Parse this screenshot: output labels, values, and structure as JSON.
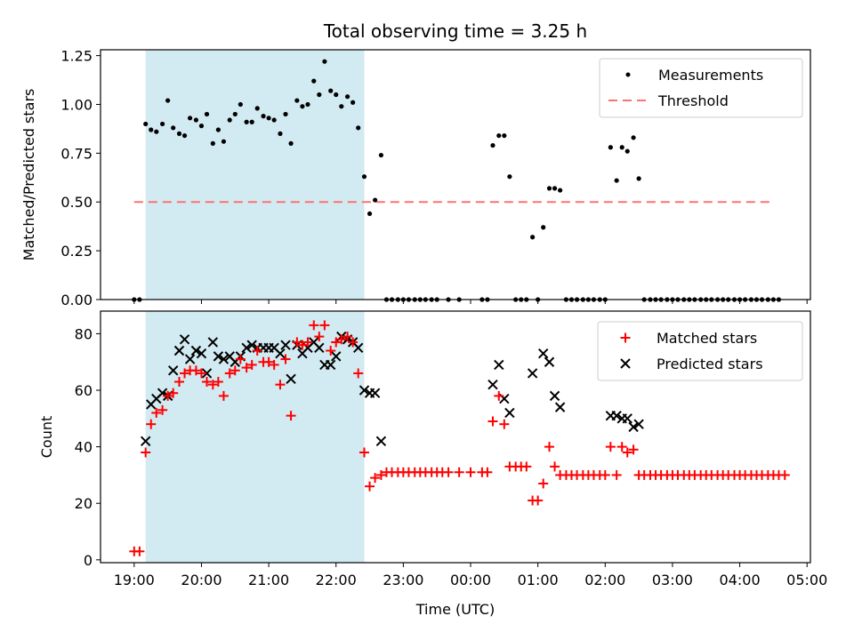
{
  "chart_data": {
    "title": "Total observing time = 3.25 h",
    "xlabel": "Time (UTC)",
    "x_ticks": [
      "19:00",
      "20:00",
      "21:00",
      "22:00",
      "23:00",
      "00:00",
      "01:00",
      "02:00",
      "03:00",
      "04:00",
      "05:00"
    ],
    "x_range_hours": [
      18.5,
      29.05
    ],
    "shaded_interval_hours": [
      19.17,
      22.42
    ],
    "shade_color": "#add8e6",
    "top": {
      "type": "scatter",
      "ylabel": "Matched/Predicted stars",
      "ylim": [
        0,
        1.28
      ],
      "yticks": [
        "0.00",
        "0.25",
        "0.50",
        "0.75",
        "1.00",
        "1.25"
      ],
      "threshold": 0.5,
      "threshold_range_hours": [
        19.0,
        28.5
      ],
      "legend": [
        "Measurements",
        "Threshold"
      ],
      "threshold_color": "#ff7070",
      "measurements": [
        [
          19.0,
          0
        ],
        [
          19.08,
          0
        ],
        [
          19.17,
          0.9
        ],
        [
          19.25,
          0.87
        ],
        [
          19.33,
          0.86
        ],
        [
          19.42,
          0.9
        ],
        [
          19.5,
          1.02
        ],
        [
          19.58,
          0.88
        ],
        [
          19.67,
          0.85
        ],
        [
          19.75,
          0.84
        ],
        [
          19.83,
          0.93
        ],
        [
          19.92,
          0.92
        ],
        [
          20.0,
          0.89
        ],
        [
          20.08,
          0.95
        ],
        [
          20.17,
          0.8
        ],
        [
          20.25,
          0.87
        ],
        [
          20.33,
          0.81
        ],
        [
          20.42,
          0.92
        ],
        [
          20.5,
          0.95
        ],
        [
          20.58,
          1.0
        ],
        [
          20.67,
          0.91
        ],
        [
          20.75,
          0.91
        ],
        [
          20.83,
          0.98
        ],
        [
          20.92,
          0.94
        ],
        [
          21.0,
          0.93
        ],
        [
          21.08,
          0.92
        ],
        [
          21.17,
          0.85
        ],
        [
          21.25,
          0.95
        ],
        [
          21.33,
          0.8
        ],
        [
          21.42,
          1.02
        ],
        [
          21.5,
          0.99
        ],
        [
          21.58,
          1.0
        ],
        [
          21.67,
          1.12
        ],
        [
          21.75,
          1.05
        ],
        [
          21.83,
          1.22
        ],
        [
          21.92,
          1.07
        ],
        [
          22.0,
          1.05
        ],
        [
          22.08,
          0.99
        ],
        [
          22.17,
          1.04
        ],
        [
          22.25,
          1.01
        ],
        [
          22.33,
          0.88
        ],
        [
          22.42,
          0.63
        ],
        [
          22.5,
          0.44
        ],
        [
          22.58,
          0.51
        ],
        [
          22.67,
          0.74
        ],
        [
          22.75,
          0
        ],
        [
          22.83,
          0
        ],
        [
          22.92,
          0
        ],
        [
          23.0,
          0
        ],
        [
          23.08,
          0
        ],
        [
          23.17,
          0
        ],
        [
          23.25,
          0
        ],
        [
          23.33,
          0
        ],
        [
          23.42,
          0
        ],
        [
          23.5,
          0
        ],
        [
          23.67,
          0
        ],
        [
          23.83,
          0
        ],
        [
          24.17,
          0
        ],
        [
          24.25,
          0
        ],
        [
          24.33,
          0.79
        ],
        [
          24.42,
          0.84
        ],
        [
          24.5,
          0.84
        ],
        [
          24.58,
          0.63
        ],
        [
          24.67,
          0
        ],
        [
          24.75,
          0
        ],
        [
          24.83,
          0
        ],
        [
          24.92,
          0.32
        ],
        [
          25.0,
          0
        ],
        [
          25.08,
          0.37
        ],
        [
          25.17,
          0.57
        ],
        [
          25.25,
          0.57
        ],
        [
          25.33,
          0.56
        ],
        [
          25.42,
          0
        ],
        [
          25.5,
          0
        ],
        [
          25.58,
          0
        ],
        [
          25.67,
          0
        ],
        [
          25.75,
          0
        ],
        [
          25.83,
          0
        ],
        [
          25.92,
          0
        ],
        [
          26.0,
          0
        ],
        [
          26.08,
          0.78
        ],
        [
          26.17,
          0.61
        ],
        [
          26.25,
          0.78
        ],
        [
          26.33,
          0.76
        ],
        [
          26.42,
          0.83
        ],
        [
          26.5,
          0.62
        ],
        [
          26.58,
          0
        ],
        [
          26.67,
          0
        ],
        [
          26.75,
          0
        ],
        [
          26.83,
          0
        ],
        [
          26.92,
          0
        ],
        [
          27.0,
          0
        ],
        [
          27.08,
          0
        ],
        [
          27.17,
          0
        ],
        [
          27.25,
          0
        ],
        [
          27.33,
          0
        ],
        [
          27.42,
          0
        ],
        [
          27.5,
          0
        ],
        [
          27.58,
          0
        ],
        [
          27.67,
          0
        ],
        [
          27.75,
          0
        ],
        [
          27.83,
          0
        ],
        [
          27.92,
          0
        ],
        [
          28.0,
          0
        ],
        [
          28.08,
          0
        ],
        [
          28.17,
          0
        ],
        [
          28.25,
          0
        ],
        [
          28.33,
          0
        ],
        [
          28.42,
          0
        ],
        [
          28.5,
          0
        ],
        [
          28.58,
          0
        ]
      ]
    },
    "bottom": {
      "type": "scatter",
      "ylabel": "Count",
      "ylim": [
        -1,
        88
      ],
      "yticks": [
        "0",
        "20",
        "40",
        "60",
        "80"
      ],
      "legend": [
        "Matched stars",
        "Predicted stars"
      ],
      "matched_color": "#ff0000",
      "predicted_color": "#000000",
      "matched": [
        [
          19.0,
          3
        ],
        [
          19.08,
          3
        ],
        [
          19.17,
          38
        ],
        [
          19.25,
          48
        ],
        [
          19.33,
          52
        ],
        [
          19.42,
          53
        ],
        [
          19.5,
          58
        ],
        [
          19.58,
          59
        ],
        [
          19.67,
          63
        ],
        [
          19.75,
          66
        ],
        [
          19.83,
          67
        ],
        [
          19.92,
          67
        ],
        [
          20.0,
          66
        ],
        [
          20.08,
          63
        ],
        [
          20.17,
          62
        ],
        [
          20.25,
          63
        ],
        [
          20.33,
          58
        ],
        [
          20.42,
          66
        ],
        [
          20.5,
          67
        ],
        [
          20.58,
          71
        ],
        [
          20.67,
          68
        ],
        [
          20.75,
          69
        ],
        [
          20.83,
          74
        ],
        [
          20.92,
          70
        ],
        [
          21.0,
          70
        ],
        [
          21.08,
          69
        ],
        [
          21.17,
          62
        ],
        [
          21.25,
          71
        ],
        [
          21.33,
          51
        ],
        [
          21.42,
          77
        ],
        [
          21.5,
          76
        ],
        [
          21.58,
          77
        ],
        [
          21.67,
          83
        ],
        [
          21.75,
          79
        ],
        [
          21.83,
          83
        ],
        [
          21.92,
          74
        ],
        [
          22.0,
          77
        ],
        [
          22.08,
          78
        ],
        [
          22.17,
          79
        ],
        [
          22.25,
          77
        ],
        [
          22.33,
          66
        ],
        [
          22.42,
          38
        ],
        [
          22.5,
          26
        ],
        [
          22.58,
          29
        ],
        [
          22.67,
          30
        ],
        [
          22.75,
          31
        ],
        [
          22.83,
          31
        ],
        [
          22.92,
          31
        ],
        [
          23.0,
          31
        ],
        [
          23.08,
          31
        ],
        [
          23.17,
          31
        ],
        [
          23.25,
          31
        ],
        [
          23.33,
          31
        ],
        [
          23.42,
          31
        ],
        [
          23.5,
          31
        ],
        [
          23.58,
          31
        ],
        [
          23.67,
          31
        ],
        [
          23.83,
          31
        ],
        [
          24.0,
          31
        ],
        [
          24.17,
          31
        ],
        [
          24.25,
          31
        ],
        [
          24.33,
          49
        ],
        [
          24.42,
          58
        ],
        [
          24.5,
          48
        ],
        [
          24.58,
          33
        ],
        [
          24.67,
          33
        ],
        [
          24.75,
          33
        ],
        [
          24.83,
          33
        ],
        [
          24.92,
          21
        ],
        [
          25.0,
          21
        ],
        [
          25.08,
          27
        ],
        [
          25.17,
          40
        ],
        [
          25.25,
          33
        ],
        [
          25.33,
          30
        ],
        [
          25.42,
          30
        ],
        [
          25.5,
          30
        ],
        [
          25.58,
          30
        ],
        [
          25.67,
          30
        ],
        [
          25.75,
          30
        ],
        [
          25.83,
          30
        ],
        [
          25.92,
          30
        ],
        [
          26.0,
          30
        ],
        [
          26.08,
          40
        ],
        [
          26.17,
          30
        ],
        [
          26.25,
          40
        ],
        [
          26.33,
          38
        ],
        [
          26.42,
          39
        ],
        [
          26.5,
          30
        ],
        [
          26.58,
          30
        ],
        [
          26.67,
          30
        ],
        [
          26.75,
          30
        ],
        [
          26.83,
          30
        ],
        [
          26.92,
          30
        ],
        [
          27.0,
          30
        ],
        [
          27.08,
          30
        ],
        [
          27.17,
          30
        ],
        [
          27.25,
          30
        ],
        [
          27.33,
          30
        ],
        [
          27.42,
          30
        ],
        [
          27.5,
          30
        ],
        [
          27.58,
          30
        ],
        [
          27.67,
          30
        ],
        [
          27.75,
          30
        ],
        [
          27.83,
          30
        ],
        [
          27.92,
          30
        ],
        [
          28.0,
          30
        ],
        [
          28.08,
          30
        ],
        [
          28.17,
          30
        ],
        [
          28.25,
          30
        ],
        [
          28.33,
          30
        ],
        [
          28.42,
          30
        ],
        [
          28.5,
          30
        ],
        [
          28.58,
          30
        ],
        [
          28.67,
          30
        ]
      ],
      "predicted": [
        [
          19.17,
          42
        ],
        [
          19.25,
          55
        ],
        [
          19.33,
          57
        ],
        [
          19.42,
          59
        ],
        [
          19.5,
          58
        ],
        [
          19.58,
          67
        ],
        [
          19.67,
          74
        ],
        [
          19.75,
          78
        ],
        [
          19.83,
          71
        ],
        [
          19.92,
          74
        ],
        [
          20.0,
          73
        ],
        [
          20.08,
          66
        ],
        [
          20.17,
          77
        ],
        [
          20.25,
          72
        ],
        [
          20.33,
          71
        ],
        [
          20.42,
          72
        ],
        [
          20.5,
          70
        ],
        [
          20.58,
          72
        ],
        [
          20.67,
          75
        ],
        [
          20.75,
          76
        ],
        [
          20.83,
          75
        ],
        [
          20.92,
          75
        ],
        [
          21.0,
          75
        ],
        [
          21.08,
          75
        ],
        [
          21.17,
          73
        ],
        [
          21.25,
          76
        ],
        [
          21.33,
          64
        ],
        [
          21.42,
          76
        ],
        [
          21.5,
          73
        ],
        [
          21.58,
          75
        ],
        [
          21.67,
          77
        ],
        [
          21.75,
          75
        ],
        [
          21.83,
          69
        ],
        [
          21.92,
          69
        ],
        [
          22.0,
          72
        ],
        [
          22.08,
          79
        ],
        [
          22.17,
          78
        ],
        [
          22.25,
          77
        ],
        [
          22.33,
          75
        ],
        [
          22.42,
          60
        ],
        [
          22.5,
          59
        ],
        [
          22.58,
          59
        ],
        [
          22.67,
          42
        ],
        [
          24.33,
          62
        ],
        [
          24.42,
          69
        ],
        [
          24.5,
          57
        ],
        [
          24.58,
          52
        ],
        [
          24.92,
          66
        ],
        [
          25.08,
          73
        ],
        [
          25.17,
          70
        ],
        [
          25.25,
          58
        ],
        [
          25.33,
          54
        ],
        [
          26.08,
          51
        ],
        [
          26.17,
          51
        ],
        [
          26.25,
          50
        ],
        [
          26.33,
          50
        ],
        [
          26.42,
          47
        ],
        [
          26.5,
          48
        ]
      ]
    }
  }
}
